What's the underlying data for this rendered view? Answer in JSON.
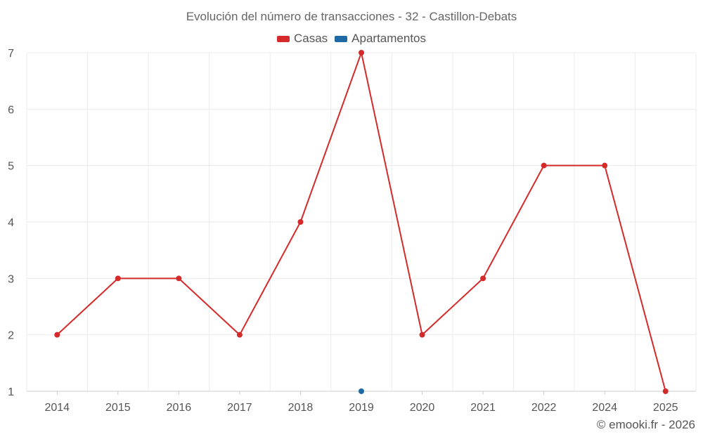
{
  "chart_data": {
    "type": "line",
    "title": "Evolución del número de transacciones - 32 - Castillon-Debats",
    "categories": [
      "2014",
      "2015",
      "2016",
      "2017",
      "2018",
      "2019",
      "2020",
      "2021",
      "2022",
      "2024",
      "2025"
    ],
    "series": [
      {
        "name": "Casas",
        "color": "#d42a2a",
        "values": [
          2,
          3,
          3,
          2,
          4,
          7,
          2,
          3,
          5,
          5,
          1
        ]
      },
      {
        "name": "Apartamentos",
        "color": "#1f6aa5",
        "values": [
          null,
          null,
          null,
          null,
          null,
          1,
          null,
          null,
          null,
          null,
          null
        ]
      }
    ],
    "yticks": [
      1,
      2,
      3,
      4,
      5,
      6,
      7
    ],
    "ylim": [
      1,
      7
    ],
    "grid": true,
    "legend_position": "top-center"
  },
  "footer": "© emooki.fr - 2026"
}
